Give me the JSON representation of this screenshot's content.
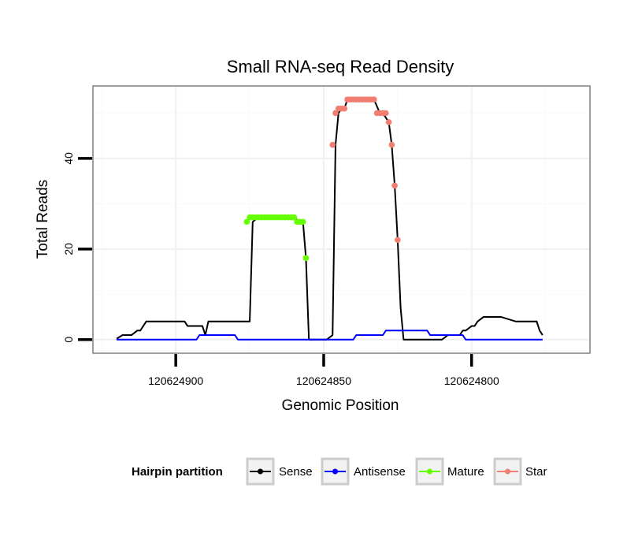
{
  "chart_data": {
    "type": "line",
    "title": "Small RNA-seq Read Density",
    "xlabel": "Genomic Position",
    "ylabel": "Total Reads",
    "x_reversed": true,
    "xlim": [
      120624928,
      120624760
    ],
    "ylim": [
      -3,
      56
    ],
    "x_ticks": [
      120624900,
      120624850,
      120624800
    ],
    "x_tick_labels": [
      "120624900",
      "120624850",
      "120624800"
    ],
    "x_minor_ticks": [
      120624925,
      120624875,
      120624825,
      120624775
    ],
    "y_ticks": [
      0,
      20,
      40
    ],
    "y_tick_labels": [
      "0",
      "20",
      "40"
    ],
    "y_minor_ticks": [
      10,
      30,
      50
    ],
    "grid": true,
    "legend_title": "Hairpin partition",
    "legend_position": "bottom",
    "series": [
      {
        "name": "Sense",
        "color": "#000000",
        "x": [
          120624920,
          120624918,
          120624917,
          120624915,
          120624913,
          120624912,
          120624911,
          120624910,
          120624908,
          120624905,
          120624902,
          120624899,
          120624897,
          120624896,
          120624895,
          120624894,
          120624891,
          120624890,
          120624889,
          120624888,
          120624887,
          120624877,
          120624876,
          120624875,
          120624874,
          120624872,
          120624871,
          120624870,
          120624868,
          120624866,
          120624864,
          120624862,
          120624860,
          120624858,
          120624857,
          120624856,
          120624855,
          120624849,
          120624847,
          120624846,
          120624845,
          120624844,
          120624843,
          120624842,
          120624840,
          120624838,
          120624836,
          120624835,
          120624833,
          120624831,
          120624830,
          120624828,
          120624827,
          120624826,
          120624825,
          120624824,
          120624823,
          120624822,
          120624821,
          120624820,
          120624818,
          120624816,
          120624813,
          120624810,
          120624808,
          120624806,
          120624804,
          120624803,
          120624802,
          120624800,
          120624799,
          120624798,
          120624796,
          120624794,
          120624790,
          120624785,
          120624780,
          120624779,
          120624778,
          120624777,
          120624776
        ],
        "values": [
          0.2,
          1,
          1,
          1,
          2,
          2,
          3,
          4,
          4,
          4,
          4,
          4,
          4,
          3,
          3,
          3,
          3,
          1,
          4,
          4,
          4,
          4,
          4,
          4,
          26,
          27,
          27,
          27,
          27,
          27,
          27,
          27,
          27,
          26,
          26,
          18,
          0,
          0,
          1,
          43,
          50,
          51,
          51,
          53,
          53,
          53,
          53,
          53,
          53,
          50,
          50,
          48,
          43,
          34,
          22,
          7,
          0,
          0,
          0,
          0,
          0,
          0,
          0,
          0,
          1,
          1,
          1,
          2,
          2,
          3,
          3,
          4,
          5,
          5,
          5,
          4,
          4,
          4,
          4,
          2,
          1
        ]
      },
      {
        "name": "Antisense",
        "color": "#0000ff",
        "x": [
          120624920,
          120624893,
          120624892,
          120624880,
          120624879,
          120624854,
          120624840,
          120624839,
          120624830,
          120624829,
          120624815,
          120624814,
          120624803,
          120624802,
          120624776
        ],
        "values": [
          0,
          0,
          1,
          1,
          0,
          0,
          0,
          1,
          1,
          2,
          2,
          1,
          1,
          0,
          0
        ]
      },
      {
        "name": "Mature",
        "color": "#66ff00",
        "x": [
          120624876,
          120624875,
          120624874,
          120624873,
          120624872,
          120624871,
          120624870,
          120624869,
          120624868,
          120624867,
          120624866,
          120624865,
          120624864,
          120624863,
          120624862,
          120624861,
          120624860,
          120624859,
          120624858,
          120624857,
          120624856
        ],
        "values": [
          26,
          27,
          27,
          27,
          27,
          27,
          27,
          27,
          27,
          27,
          27,
          27,
          27,
          27,
          27,
          27,
          27,
          26,
          26,
          26,
          18
        ]
      },
      {
        "name": "Star",
        "color": "#f27d72",
        "x": [
          120624847,
          120624846,
          120624845,
          120624844,
          120624843,
          120624842,
          120624841,
          120624840,
          120624839,
          120624838,
          120624837,
          120624836,
          120624835,
          120624834,
          120624833,
          120624832,
          120624831,
          120624830,
          120624829,
          120624828,
          120624827,
          120624826,
          120624825
        ],
        "values": [
          43,
          50,
          51,
          51,
          51,
          53,
          53,
          53,
          53,
          53,
          53,
          53,
          53,
          53,
          53,
          50,
          50,
          50,
          50,
          48,
          43,
          34,
          22
        ]
      }
    ]
  }
}
